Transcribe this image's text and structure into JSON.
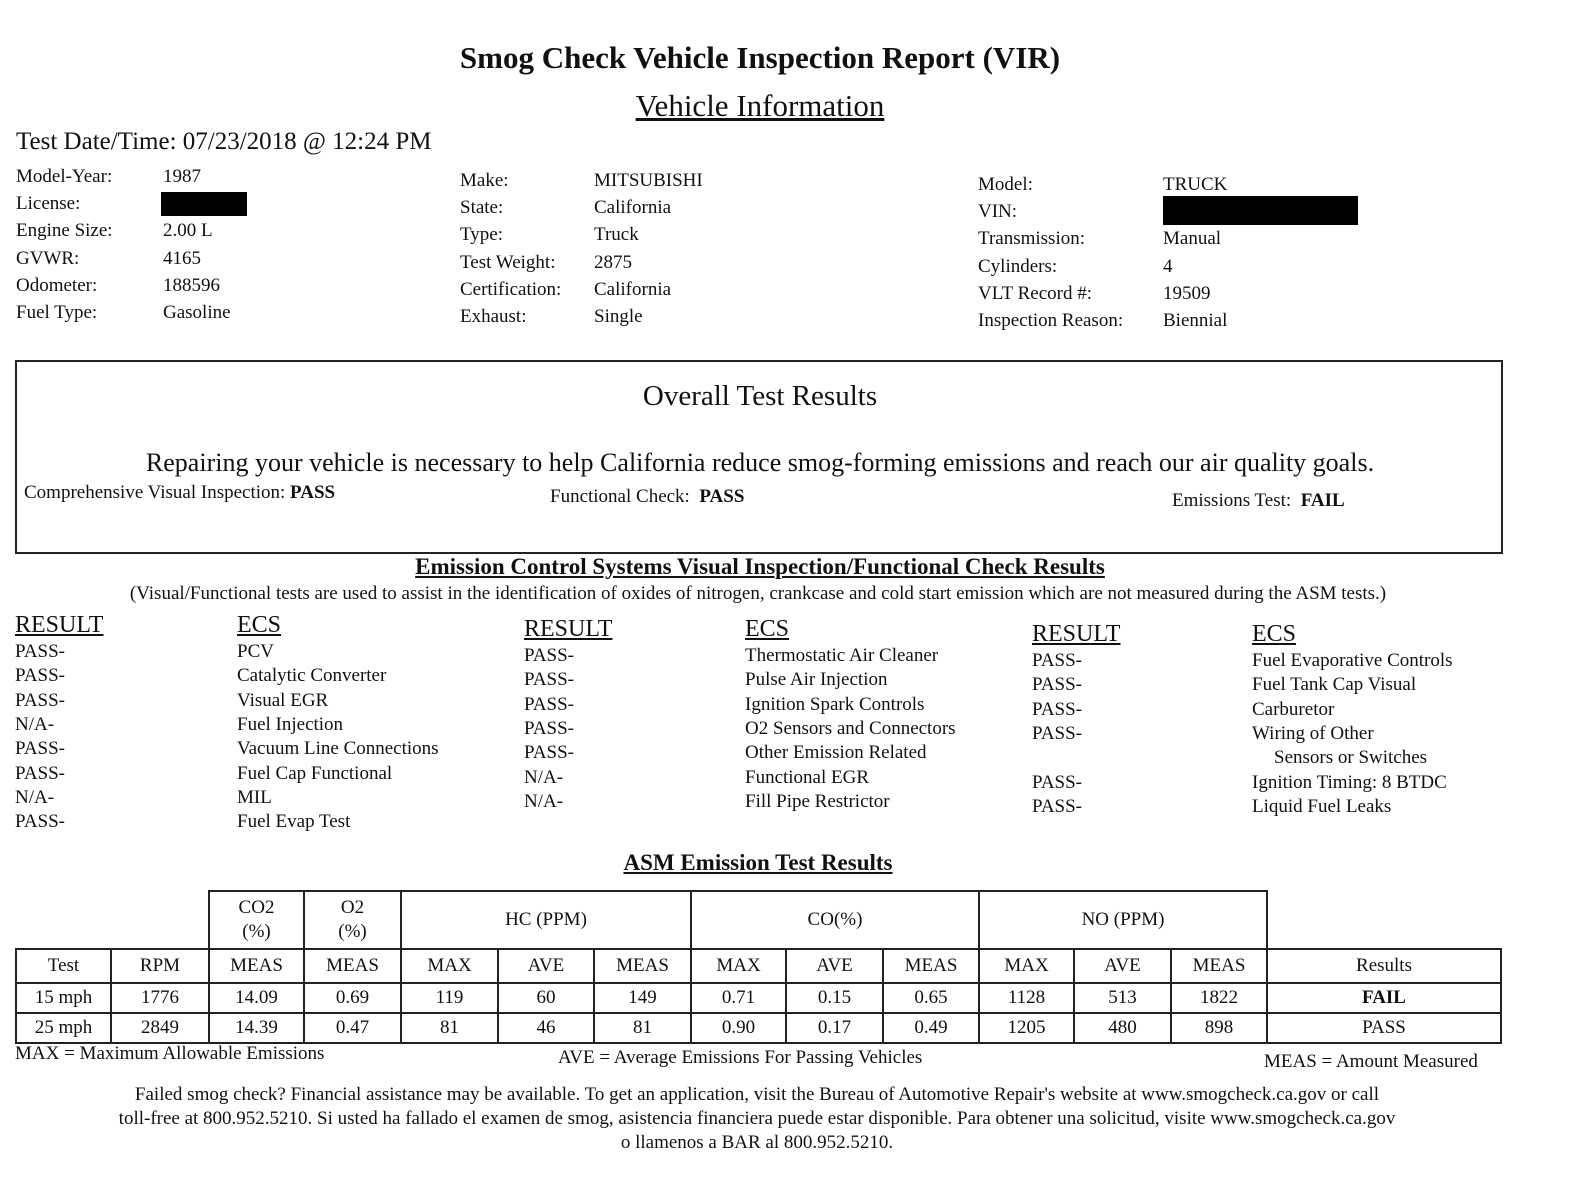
{
  "title": "Smog Check Vehicle Inspection Report (VIR)",
  "subtitle": "Vehicle Information",
  "test_datetime": "Test Date/Time: 07/23/2018 @ 12:24 PM",
  "info_left": [
    {
      "label": "Model-Year:",
      "value": "1987"
    },
    {
      "label": "License:",
      "value": ""
    },
    {
      "label": "Engine Size:",
      "value": "2.00 L"
    },
    {
      "label": "GVWR:",
      "value": "4165"
    },
    {
      "label": "Odometer:",
      "value": "188596"
    },
    {
      "label": "Fuel Type:",
      "value": "Gasoline"
    }
  ],
  "info_mid": [
    {
      "label": "Make:",
      "value": "MITSUBISHI"
    },
    {
      "label": "State:",
      "value": "California"
    },
    {
      "label": "Type:",
      "value": "Truck"
    },
    {
      "label": "Test Weight:",
      "value": "2875"
    },
    {
      "label": "Certification:",
      "value": "California"
    },
    {
      "label": "Exhaust:",
      "value": "Single"
    }
  ],
  "info_right": [
    {
      "label": "Model:",
      "value": "TRUCK"
    },
    {
      "label": "VIN:",
      "value": ""
    },
    {
      "label": "Transmission:",
      "value": "Manual"
    },
    {
      "label": "Cylinders:",
      "value": "4"
    },
    {
      "label": "VLT Record #:",
      "value": "19509"
    },
    {
      "label": "Inspection Reason:",
      "value": "Biennial"
    }
  ],
  "overall": {
    "heading": "Overall Test Results",
    "statement": "Repairing your vehicle is necessary to help California reduce smog-forming emissions and reach our air quality goals.",
    "visual_label": "Comprehensive Visual Inspection:",
    "visual_value": "PASS",
    "functional_label": "Functional Check:",
    "functional_value": "PASS",
    "emissions_label": "Emissions Test:",
    "emissions_value": "FAIL"
  },
  "ecs": {
    "heading": "Emission Control Systems Visual Inspection/Functional Check Results",
    "note": "(Visual/Functional tests are used to assist in the identification of oxides of nitrogen, crankcase and cold start emission which are not measured during the ASM tests.)",
    "result_header": "RESULT",
    "ecs_header": "ECS",
    "columns": [
      {
        "results": [
          "PASS-",
          "PASS-",
          "PASS-",
          "N/A-",
          "PASS-",
          "PASS-",
          "N/A-",
          "PASS-"
        ],
        "items": [
          "PCV",
          "Catalytic Converter",
          "Visual EGR",
          "Fuel Injection",
          "Vacuum Line Connections",
          "Fuel Cap Functional",
          "MIL",
          "Fuel Evap Test"
        ]
      },
      {
        "results": [
          "PASS-",
          "PASS-",
          "PASS-",
          "PASS-",
          "PASS-",
          "N/A-",
          "N/A-"
        ],
        "items": [
          "Thermostatic Air Cleaner",
          "Pulse Air Injection",
          "Ignition Spark Controls",
          "O2 Sensors and Connectors",
          "Other Emission Related",
          "Functional EGR",
          "Fill Pipe Restrictor"
        ]
      },
      {
        "results": [
          "PASS-",
          "PASS-",
          "PASS-",
          "PASS-",
          "",
          "PASS-",
          "PASS-"
        ],
        "items": [
          "Fuel Evaporative Controls",
          "Fuel Tank Cap Visual",
          "Carburetor",
          "Wiring of Other",
          "   Sensors or Switches",
          "Ignition Timing: 8 BTDC",
          "Liquid Fuel Leaks"
        ]
      }
    ]
  },
  "asm": {
    "heading": "ASM Emission Test Results",
    "group_headers": {
      "co2": "CO2\n(%)",
      "o2": "O2\n(%)",
      "hc": "HC (PPM)",
      "co": "CO(%)",
      "no": "NO (PPM)"
    },
    "columns": [
      "Test",
      "RPM",
      "MEAS",
      "MEAS",
      "MAX",
      "AVE",
      "MEAS",
      "MAX",
      "AVE",
      "MEAS",
      "MAX",
      "AVE",
      "MEAS",
      "Results"
    ],
    "rows": [
      [
        "15 mph",
        "1776",
        "14.09",
        "0.69",
        "119",
        "60",
        "149",
        "0.71",
        "0.15",
        "0.65",
        "1128",
        "513",
        "1822",
        "FAIL"
      ],
      [
        "25 mph",
        "2849",
        "14.39",
        "0.47",
        "81",
        "46",
        "81",
        "0.90",
        "0.17",
        "0.49",
        "1205",
        "480",
        "898",
        "PASS"
      ]
    ],
    "legend_max": "MAX = Maximum Allowable Emissions",
    "legend_ave": "AVE = Average Emissions For Passing Vehicles",
    "legend_meas": "MEAS = Amount Measured"
  },
  "footer": [
    "Failed smog check? Financial assistance may be available. To get an application, visit the Bureau of Automotive Repair's website at www.smogcheck.ca.gov or call",
    "toll-free at 800.952.5210. Si usted ha fallado el examen de smog, asistencia financiera puede estar disponible. Para obtener una solicitud, visite www.smogcheck.ca.gov",
    "o llamenos a BAR al 800.952.5210."
  ]
}
